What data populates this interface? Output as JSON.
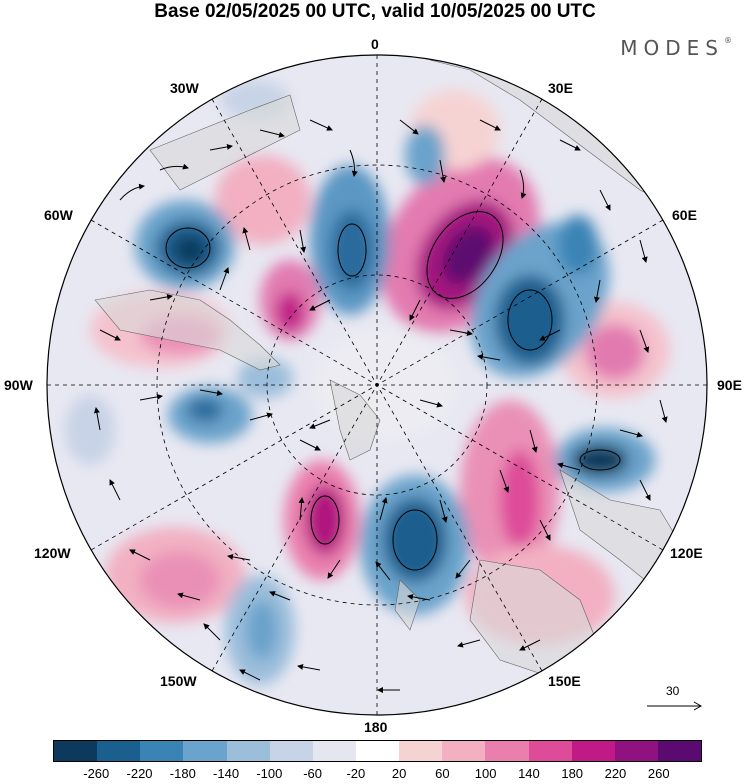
{
  "title": "Base 02/05/2025 00 UTC, valid 10/05/2025 00 UTC",
  "brand": "MODES",
  "brand_mark": "®",
  "longitude_labels": {
    "l0": "0",
    "l30e": "30E",
    "l60e": "60E",
    "l90e": "90E",
    "l120e": "120E",
    "l150e": "150E",
    "l180": "180",
    "l150w": "150W",
    "l120w": "120W",
    "l90w": "90W",
    "l60w": "60W",
    "l30w": "30W"
  },
  "reference_vector": "30",
  "colorbar": {
    "colors": [
      "#0d3a5c",
      "#1a5f8e",
      "#3a84b5",
      "#6aa3cb",
      "#9bbedb",
      "#c7d3e6",
      "#e6e6f0",
      "#ffffff",
      "#f6d3d3",
      "#f2b0c2",
      "#ea7fae",
      "#de4b99",
      "#c11a86",
      "#8f1280",
      "#5b0a72"
    ],
    "labels": [
      "-260",
      "-220",
      "-180",
      "-140",
      "-100",
      "-60",
      "-20",
      "20",
      "60",
      "100",
      "140",
      "180",
      "220",
      "260"
    ]
  }
}
